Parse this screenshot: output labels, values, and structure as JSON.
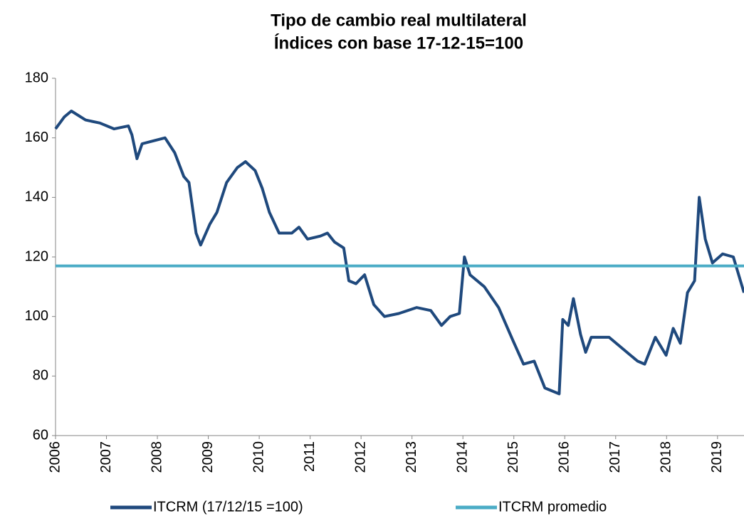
{
  "chart_data": {
    "type": "line",
    "title": [
      "Tipo de cambio real multilateral",
      "Índices con base 17-12-15=100"
    ],
    "xlim": [
      2006,
      2019.52
    ],
    "xticks": [
      2006,
      2007,
      2008,
      2009,
      2010,
      2011,
      2012,
      2013,
      2014,
      2015,
      2016,
      2017,
      2018,
      2019
    ],
    "ylim": [
      60,
      180
    ],
    "yticks": [
      60,
      80,
      100,
      120,
      140,
      160,
      180
    ],
    "legend": "bottom",
    "series": [
      {
        "name": "ITCRM (17/12/15 =100)",
        "color": "#1f497d",
        "x": [
          2006,
          2006.17,
          2006.31,
          2006.59,
          2006.87,
          2007.15,
          2007.43,
          2007.5,
          2007.6,
          2007.7,
          2007.92,
          2008.15,
          2008.34,
          2008.52,
          2008.62,
          2008.76,
          2008.85,
          2009.03,
          2009.17,
          2009.36,
          2009.57,
          2009.73,
          2009.92,
          2010.06,
          2010.2,
          2010.39,
          2010.64,
          2010.78,
          2010.95,
          2011.2,
          2011.34,
          2011.48,
          2011.66,
          2011.76,
          2011.9,
          2012.07,
          2012.25,
          2012.46,
          2012.74,
          2013.09,
          2013.37,
          2013.58,
          2013.75,
          2013.93,
          2014.03,
          2014.14,
          2014.42,
          2014.7,
          2014.98,
          2015.19,
          2015.4,
          2015.61,
          2015.89,
          2015.96,
          2016.07,
          2016.17,
          2016.31,
          2016.41,
          2016.52,
          2016.87,
          2017.22,
          2017.43,
          2017.57,
          2017.78,
          2017.99,
          2018.13,
          2018.27,
          2018.41,
          2018.55,
          2018.64,
          2018.76,
          2018.9,
          2019.1,
          2019.31,
          2019.52
        ],
        "values": [
          163,
          167,
          169,
          166,
          165,
          163,
          164,
          161,
          153,
          158,
          159,
          160,
          155,
          147,
          145,
          128,
          124,
          131,
          135,
          145,
          150,
          152,
          149,
          143,
          135,
          128,
          128,
          130,
          126,
          127,
          128,
          125,
          123,
          112,
          111,
          114,
          104,
          100,
          101,
          103,
          102,
          97,
          100,
          101,
          120,
          114,
          110,
          103,
          92,
          84,
          85,
          76,
          74,
          99,
          97,
          106,
          94,
          88,
          93,
          93,
          88,
          85,
          84,
          93,
          87,
          96,
          91,
          108,
          112,
          140,
          126,
          118,
          121,
          120,
          108
        ]
      },
      {
        "name": "ITCRM promedio",
        "color": "#4bacc6",
        "x": [
          2006,
          2019.52
        ],
        "values": [
          117,
          117
        ]
      }
    ]
  }
}
